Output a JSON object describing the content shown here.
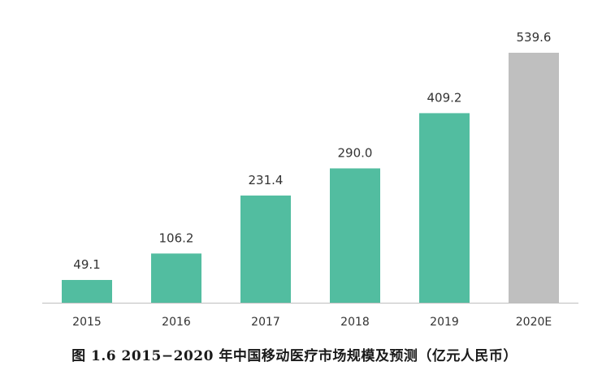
{
  "chart_data": {
    "type": "bar",
    "categories": [
      "2015",
      "2016",
      "2017",
      "2018",
      "2019",
      "2020E"
    ],
    "values": [
      49.1,
      106.2,
      231.4,
      290.0,
      409.2,
      539.6
    ],
    "value_labels": [
      "49.1",
      "106.2",
      "231.4",
      "290.0",
      "409.2",
      "539.6"
    ],
    "title": "图 1.6 2015−2020 年中国移动医疗市场规模及预测（亿元人民币）",
    "xlabel": "",
    "ylabel": "",
    "grid": false,
    "legend": "none",
    "colors": {
      "actual": "#52bda0",
      "forecast": "#bfbfbf",
      "axis": "#bfbfbf",
      "label_text": "#333333"
    },
    "forecast_categories": [
      "2020E"
    ]
  }
}
